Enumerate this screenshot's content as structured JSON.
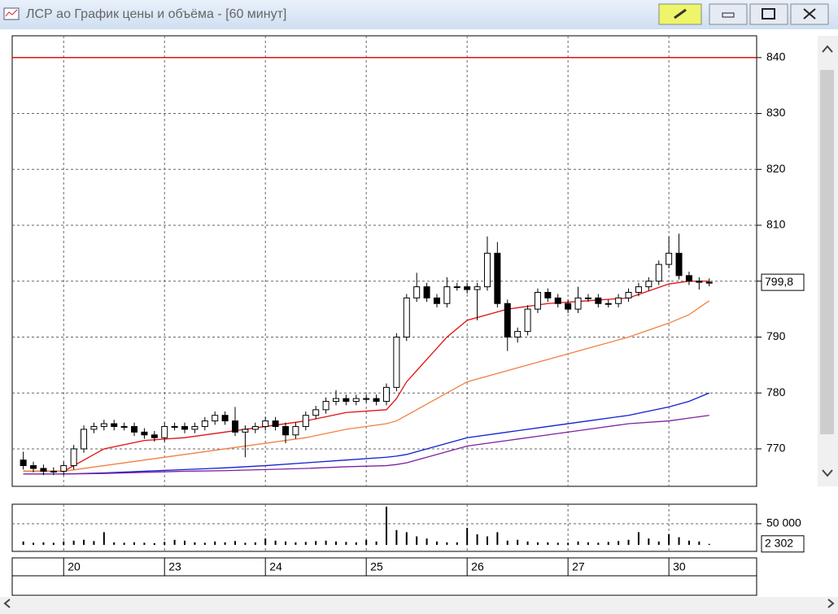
{
  "window": {
    "title": "ЛСР ао График цены и объёма - [60 минут]"
  },
  "chart_data": [
    {
      "type": "candlestick",
      "x": [
        -4,
        -3,
        -2,
        -1,
        0,
        1,
        2,
        3,
        4,
        5,
        6,
        7,
        8,
        9,
        10,
        11,
        12,
        13,
        14,
        15,
        16,
        17,
        18,
        19,
        20,
        21,
        22,
        23,
        24,
        25,
        26,
        27,
        28,
        29,
        30,
        31,
        32,
        33,
        34,
        35,
        36,
        37,
        38,
        39,
        40,
        41,
        42,
        43,
        44,
        45,
        46,
        47,
        48,
        49,
        50,
        51,
        52,
        53,
        54,
        55,
        56,
        57,
        58,
        59,
        60,
        61,
        62,
        63,
        64
      ],
      "open": [
        768,
        767,
        766.5,
        766,
        766,
        767,
        770,
        773.5,
        774,
        774.5,
        774,
        774,
        773,
        772.5,
        772,
        774,
        774,
        773.5,
        774,
        775,
        776,
        775,
        773,
        773.5,
        774,
        775,
        774,
        772.5,
        774,
        776,
        777,
        778.5,
        779,
        778.5,
        779,
        779,
        778.5,
        781,
        790,
        797,
        799,
        797,
        796,
        799,
        799,
        798.5,
        799,
        805,
        796,
        790,
        791,
        795,
        798,
        797,
        796,
        795,
        797,
        797,
        796,
        796,
        797,
        798,
        799,
        800,
        803,
        805,
        801,
        800,
        799.8
      ],
      "high": [
        769.5,
        767.7,
        767.2,
        766.7,
        767.7,
        770.7,
        774.2,
        774.7,
        775.2,
        775.2,
        774.7,
        774.7,
        773.7,
        773.2,
        774.7,
        774.7,
        774.7,
        774.7,
        775.7,
        776.7,
        776.7,
        777.5,
        774.2,
        774.7,
        775.7,
        775.7,
        774.7,
        774.7,
        776.7,
        777.7,
        779.2,
        780.5,
        779.7,
        779.7,
        779.7,
        779.7,
        781.7,
        790.7,
        797.7,
        801.5,
        799.7,
        797.7,
        800.7,
        799.7,
        799.7,
        799.7,
        808,
        807,
        796.7,
        791.7,
        795.7,
        798.7,
        798.7,
        797.7,
        796.7,
        799,
        797.7,
        797.7,
        796.7,
        797.7,
        798.7,
        799.7,
        800.7,
        803.7,
        808,
        808.5,
        801.7,
        800.7,
        800.5
      ],
      "low": [
        766.3,
        765.8,
        765.3,
        765.3,
        765.3,
        766.3,
        769.3,
        772.8,
        773.3,
        773.3,
        773.3,
        772.3,
        771.8,
        771.3,
        771.3,
        773.3,
        772.8,
        772.8,
        773.3,
        774.3,
        774.3,
        772.3,
        768.5,
        772.8,
        773.3,
        773.3,
        771,
        771.8,
        773.3,
        775.3,
        776.3,
        777.8,
        777.8,
        777.8,
        778.3,
        777.8,
        777.8,
        780.3,
        789.3,
        796.3,
        796.3,
        795.3,
        795.3,
        798.3,
        797.8,
        793,
        798.3,
        795.3,
        787.5,
        789,
        790.3,
        794.3,
        796.3,
        795.3,
        794.3,
        794.3,
        796.3,
        795.3,
        795.3,
        795.3,
        796.3,
        797.3,
        798.3,
        799.3,
        802.3,
        800.3,
        799.3,
        798.5,
        799.1
      ],
      "close": [
        767,
        766.5,
        766,
        766,
        767,
        770,
        773.5,
        774,
        774.5,
        774,
        774,
        773,
        772.5,
        772,
        774,
        774,
        773.5,
        774,
        775,
        776,
        775,
        773,
        773.5,
        774,
        775,
        774,
        772.5,
        774,
        776,
        777,
        778.5,
        779,
        778.5,
        779,
        779,
        778.5,
        781,
        790,
        797,
        799,
        797,
        796,
        799,
        799,
        798.5,
        799,
        805,
        796,
        790,
        791,
        795,
        798,
        797,
        796,
        795,
        797,
        797,
        796,
        796,
        797,
        798,
        799,
        800,
        803,
        805,
        801,
        800,
        799.8,
        799.8
      ],
      "up_color": "#ffffff",
      "down_color": "#000000",
      "series": [
        {
          "color": "#e01010",
          "x": [
            -4,
            0,
            4,
            8,
            12,
            16,
            20,
            24,
            28,
            32,
            33,
            34,
            36,
            38,
            40,
            44,
            48,
            52,
            56,
            60,
            62,
            64
          ],
          "values": [
            766,
            766,
            770,
            771.5,
            772,
            773,
            774,
            775,
            776.5,
            777,
            779,
            782,
            786,
            790,
            793,
            795,
            796,
            796.5,
            797,
            799.5,
            800,
            800
          ]
        },
        {
          "color": "#f08040",
          "x": [
            -4,
            0,
            4,
            8,
            12,
            16,
            20,
            24,
            28,
            32,
            33,
            34,
            36,
            38,
            40,
            44,
            48,
            52,
            56,
            60,
            62,
            64
          ],
          "values": [
            766,
            766,
            767,
            768,
            769,
            770,
            771,
            772,
            773.5,
            774.5,
            775,
            776,
            778,
            780,
            782,
            784,
            786,
            788,
            790,
            792.5,
            794,
            796.5
          ]
        },
        {
          "color": "#1020d0",
          "x": [
            -4,
            0,
            4,
            8,
            12,
            16,
            20,
            24,
            28,
            32,
            33,
            34,
            36,
            38,
            40,
            44,
            48,
            52,
            56,
            60,
            62,
            64
          ],
          "values": [
            765.5,
            765.5,
            765.7,
            766,
            766.3,
            766.6,
            767,
            767.5,
            768,
            768.5,
            768.7,
            769,
            770,
            771,
            772,
            773,
            774,
            775,
            776,
            777.5,
            778.5,
            780
          ]
        },
        {
          "color": "#8020a0",
          "x": [
            -4,
            0,
            4,
            8,
            12,
            16,
            20,
            24,
            28,
            32,
            33,
            34,
            36,
            38,
            40,
            44,
            48,
            52,
            56,
            60,
            62,
            64
          ],
          "values": [
            765.5,
            765.5,
            765.6,
            765.8,
            766,
            766.1,
            766.3,
            766.5,
            766.8,
            767,
            767.2,
            767.5,
            768.5,
            769.5,
            770.5,
            771.5,
            772.5,
            773.5,
            774.5,
            775,
            775.5,
            776
          ]
        }
      ],
      "level": 840,
      "level_color": "#e01010",
      "last_value": {
        "value": 799.8,
        "label": "799,8"
      },
      "xlim": [
        -5.1,
        68.7
      ],
      "xticks": [
        {
          "value": 0,
          "label": "20"
        },
        {
          "value": 10,
          "label": "23"
        },
        {
          "value": 20,
          "label": "24"
        },
        {
          "value": 30,
          "label": "25"
        },
        {
          "value": 40,
          "label": "26"
        },
        {
          "value": 50,
          "label": "27"
        },
        {
          "value": 60,
          "label": "30"
        }
      ],
      "ylim": [
        763.3,
        843.9
      ],
      "yticks": [
        770,
        780,
        790,
        800,
        810,
        820,
        830,
        840
      ],
      "grid": true
    },
    {
      "type": "bar",
      "x": [
        -4,
        -3,
        -2,
        -1,
        0,
        1,
        2,
        3,
        4,
        5,
        6,
        7,
        8,
        9,
        10,
        11,
        12,
        13,
        14,
        15,
        16,
        17,
        18,
        19,
        20,
        21,
        22,
        23,
        24,
        25,
        26,
        27,
        28,
        29,
        30,
        31,
        32,
        33,
        34,
        35,
        36,
        37,
        38,
        39,
        40,
        41,
        42,
        43,
        44,
        45,
        46,
        47,
        48,
        49,
        50,
        51,
        52,
        53,
        54,
        55,
        56,
        57,
        58,
        59,
        60,
        61,
        62,
        63,
        64
      ],
      "values": [
        8000,
        5000,
        6000,
        5000,
        8000,
        10000,
        12000,
        9000,
        30000,
        6000,
        5000,
        6000,
        5000,
        4000,
        7000,
        12000,
        10000,
        6000,
        5000,
        8000,
        6000,
        9000,
        5000,
        6000,
        15000,
        10000,
        8000,
        6000,
        7000,
        9000,
        10000,
        8000,
        7000,
        6000,
        12000,
        8000,
        90000,
        35000,
        30000,
        20000,
        15000,
        8000,
        6000,
        6000,
        40000,
        25000,
        20000,
        30000,
        10000,
        12000,
        8000,
        6000,
        6000,
        5000,
        5000,
        8000,
        6000,
        5000,
        7000,
        9000,
        12000,
        30000,
        15000,
        8000,
        25000,
        18000,
        10000,
        8000,
        2302
      ],
      "color": "#000000",
      "last_value": {
        "value": 2302,
        "label": "2 302"
      },
      "xlim": [
        -5.1,
        68.7
      ],
      "ylim": [
        0,
        96000
      ],
      "yticks": [
        {
          "value": 50000,
          "label": "50 000"
        }
      ],
      "grid": true
    }
  ]
}
